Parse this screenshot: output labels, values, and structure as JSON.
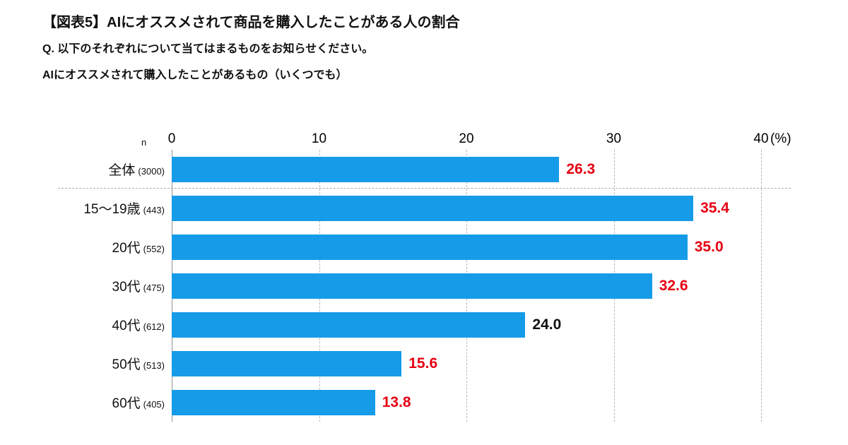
{
  "header": {
    "title": "【図表5】AIにオススメされて商品を購入したことがある人の割合",
    "question_line1": "Q. 以下のそれぞれについて当てはまるものをお知らせください。",
    "question_line2": "AIにオススメされて購入したことがあるもの（いくつでも）"
  },
  "chart_data": {
    "type": "bar",
    "orientation": "horizontal",
    "title": "【図表5】AIにオススメされて商品を購入したことがある人の割合",
    "unit_label": "(%)",
    "n_label": "n",
    "xlim": [
      0,
      40
    ],
    "x_ticks": [
      0,
      10,
      20,
      30,
      40
    ],
    "grid": "dashed-vertical",
    "categories": [
      "全体",
      "15～19歳",
      "20代",
      "30代",
      "40代",
      "50代",
      "60代"
    ],
    "n_values": [
      "(3000)",
      "(443)",
      "(552)",
      "(475)",
      "(612)",
      "(513)",
      "(405)"
    ],
    "values": [
      26.3,
      35.4,
      35.0,
      32.6,
      24.0,
      15.6,
      13.8
    ],
    "value_colors": [
      "red",
      "red",
      "red",
      "red",
      "black",
      "red",
      "red"
    ],
    "bar_color": "#169be8",
    "highlight_color": "#e60012",
    "normal_value_color": "#111111",
    "separator_after_index": 0
  }
}
